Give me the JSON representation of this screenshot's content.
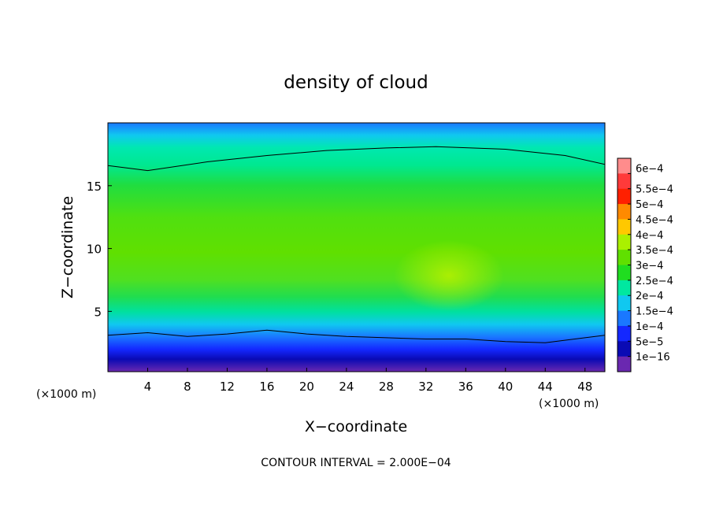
{
  "chart_data": {
    "type": "heatmap",
    "title": "density of cloud",
    "xlabel": "X−coordinate",
    "ylabel": "Z−coordinate",
    "x_unit_left": "(×1000 m)",
    "x_unit_right": "(×1000 m)",
    "xlim": [
      0,
      50
    ],
    "ylim": [
      0.2,
      20
    ],
    "x_ticks": [
      4,
      8,
      12,
      16,
      20,
      24,
      28,
      32,
      36,
      40,
      44,
      48
    ],
    "y_ticks": [
      5,
      10,
      15
    ],
    "grid": false,
    "colorbar": {
      "labels": [
        "6e−4",
        "5.5e−4",
        "5e−4",
        "4.5e−4",
        "4e−4",
        "3.5e−4",
        "3e−4",
        "2.5e−4",
        "2e−4",
        "1.5e−4",
        "1e−4",
        "5e−5",
        "1e−16"
      ],
      "values": [
        0.0006,
        0.00055,
        0.0005,
        0.00045,
        0.0004,
        0.00035,
        0.0003,
        0.00025,
        0.0002,
        0.00015,
        0.0001,
        5e-05,
        1e-16
      ],
      "colors": [
        "#ff8c8c",
        "#ff3a3a",
        "#ff2000",
        "#ff8a00",
        "#ffc800",
        "#aaf000",
        "#60e000",
        "#20dd20",
        "#00e8a0",
        "#10c8f0",
        "#1a78ff",
        "#1428ff",
        "#0a0ab4",
        "#6a28b0"
      ]
    },
    "contours": [
      {
        "level": 0.0002,
        "points": [
          [
            0,
            16.6
          ],
          [
            4,
            16.2
          ],
          [
            10,
            16.9
          ],
          [
            16,
            17.4
          ],
          [
            22,
            17.8
          ],
          [
            28,
            18.0
          ],
          [
            33,
            18.1
          ],
          [
            40,
            17.9
          ],
          [
            46,
            17.4
          ],
          [
            50,
            16.7
          ]
        ]
      },
      {
        "level": 0.0002,
        "points": [
          [
            0,
            3.1
          ],
          [
            4,
            3.3
          ],
          [
            8,
            3.0
          ],
          [
            12,
            3.2
          ],
          [
            16,
            3.5
          ],
          [
            20,
            3.2
          ],
          [
            24,
            3.0
          ],
          [
            28,
            2.9
          ],
          [
            32,
            2.8
          ],
          [
            36,
            2.8
          ],
          [
            40,
            2.6
          ],
          [
            44,
            2.5
          ],
          [
            48,
            2.9
          ],
          [
            50,
            3.1
          ]
        ]
      }
    ],
    "annotation": "CONTOUR INTERVAL = 2.000E−04"
  }
}
